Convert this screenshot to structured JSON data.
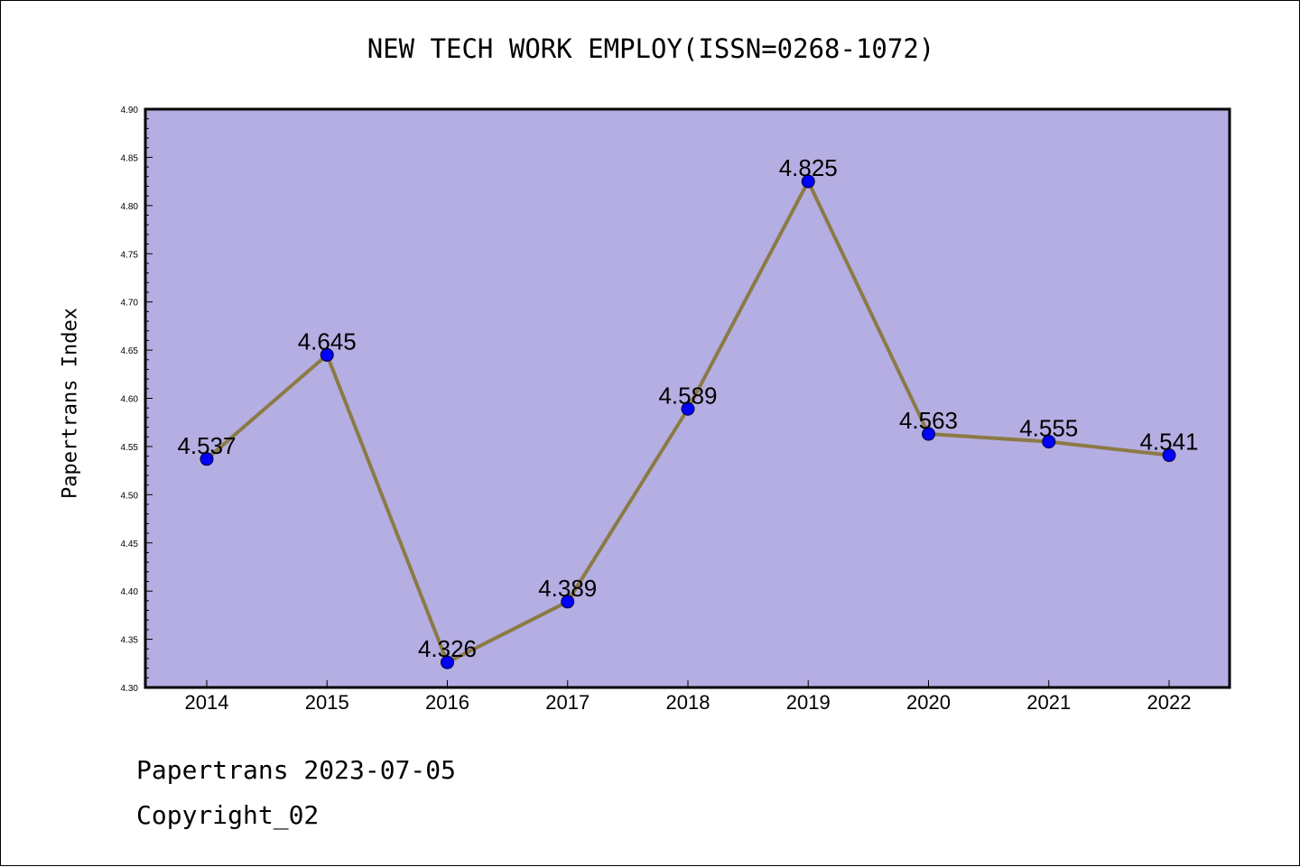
{
  "chart_data": {
    "type": "line",
    "title": "NEW TECH WORK EMPLOY(ISSN=0268-1072)",
    "ylabel": "Papertrans Index",
    "xlabel": "",
    "categories": [
      "2014",
      "2015",
      "2016",
      "2017",
      "2018",
      "2019",
      "2020",
      "2021",
      "2022"
    ],
    "values": [
      4.537,
      4.645,
      4.326,
      4.389,
      4.589,
      4.825,
      4.563,
      4.555,
      4.541
    ],
    "value_labels": [
      "4.537",
      "4.645",
      "4.326",
      "4.389",
      "4.589",
      "4.825",
      "4.563",
      "4.555",
      "4.541"
    ],
    "ylim": [
      4.3,
      4.9
    ],
    "yticks": [
      "4.30",
      "4.35",
      "4.40",
      "4.45",
      "4.50",
      "4.55",
      "4.60",
      "4.65",
      "4.70",
      "4.75",
      "4.80",
      "4.85",
      "4.90"
    ],
    "grid": false,
    "colors": {
      "plot_background": "#b5aee2",
      "line": "#8b7a45",
      "marker": "#0000ff"
    }
  },
  "footer": {
    "line1": "Papertrans 2023-07-05",
    "line2": "Copyright_02"
  }
}
